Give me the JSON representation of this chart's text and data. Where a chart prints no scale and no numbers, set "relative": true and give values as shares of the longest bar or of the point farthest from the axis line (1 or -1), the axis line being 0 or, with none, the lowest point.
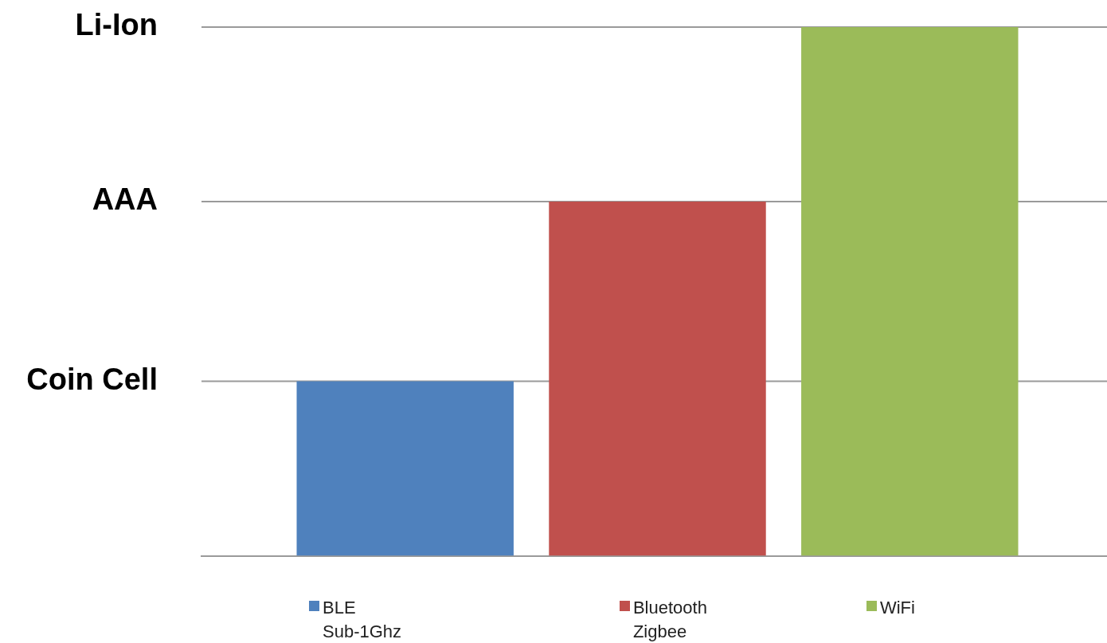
{
  "chart_data": {
    "type": "bar",
    "categories": [
      null
    ],
    "relative": true,
    "series": [
      {
        "name": "BLE\nSub-1Ghz",
        "color": "#4f81bd",
        "values": [
          0.33
        ]
      },
      {
        "name": "Bluetooth\nZigbee",
        "color": "#c0504d",
        "values": [
          0.67
        ]
      },
      {
        "name": "WiFi",
        "color": "#9bbb59",
        "values": [
          1
        ]
      }
    ],
    "ref_lines": [
      {
        "axis": "y",
        "value": 0.33,
        "label": "Coin Cell",
        "color": "#9a9a9a"
      },
      {
        "axis": "y",
        "value": 0.67,
        "label": "AAA",
        "color": "#9a9a9a"
      },
      {
        "axis": "y",
        "value": 1,
        "label": "Li-Ion",
        "color": "#9a9a9a"
      }
    ],
    "legend": "bottom"
  }
}
